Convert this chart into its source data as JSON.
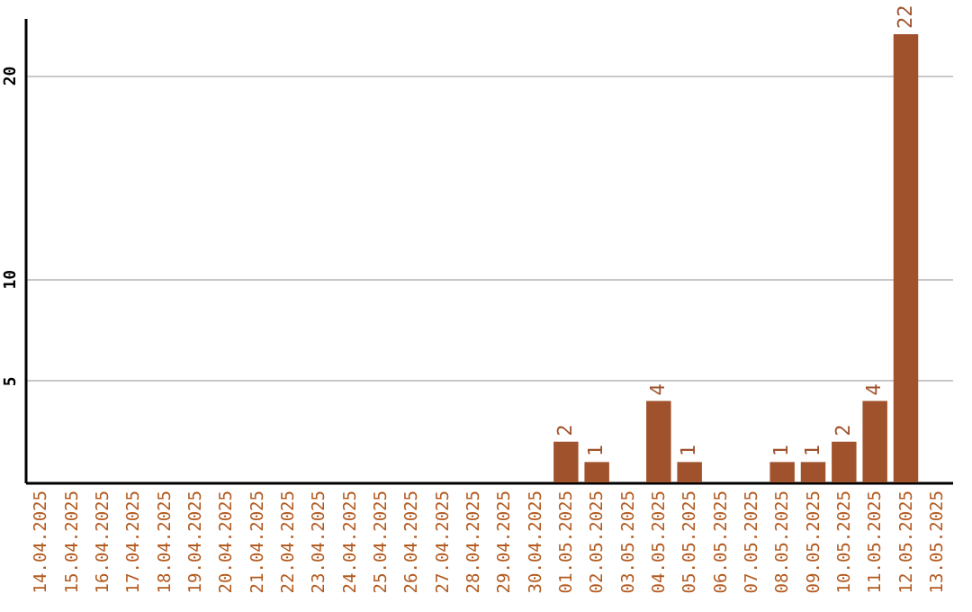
{
  "chart_data": {
    "type": "bar",
    "categories": [
      "14.04.2025",
      "15.04.2025",
      "16.04.2025",
      "17.04.2025",
      "18.04.2025",
      "19.04.2025",
      "20.04.2025",
      "21.04.2025",
      "22.04.2025",
      "23.04.2025",
      "24.04.2025",
      "25.04.2025",
      "26.04.2025",
      "27.04.2025",
      "28.04.2025",
      "29.04.2025",
      "30.04.2025",
      "01.05.2025",
      "02.05.2025",
      "03.05.2025",
      "04.05.2025",
      "05.05.2025",
      "06.05.2025",
      "07.05.2025",
      "08.05.2025",
      "09.05.2025",
      "10.05.2025",
      "11.05.2025",
      "12.05.2025",
      "13.05.2025"
    ],
    "values": [
      0,
      0,
      0,
      0,
      0,
      0,
      0,
      0,
      0,
      0,
      0,
      0,
      0,
      0,
      0,
      0,
      0,
      2,
      1,
      0,
      4,
      1,
      0,
      0,
      1,
      1,
      2,
      4,
      22,
      0
    ],
    "value_labels": [
      null,
      null,
      null,
      null,
      null,
      null,
      null,
      null,
      null,
      null,
      null,
      null,
      null,
      null,
      null,
      null,
      null,
      "2",
      "1",
      null,
      "4",
      "1",
      null,
      null,
      "1",
      "1",
      "2",
      "4",
      "22",
      null
    ],
    "color": "#a0522d",
    "ylim": [
      0,
      22.8
    ],
    "yticks": [
      5,
      10,
      20
    ],
    "grid": "y"
  }
}
